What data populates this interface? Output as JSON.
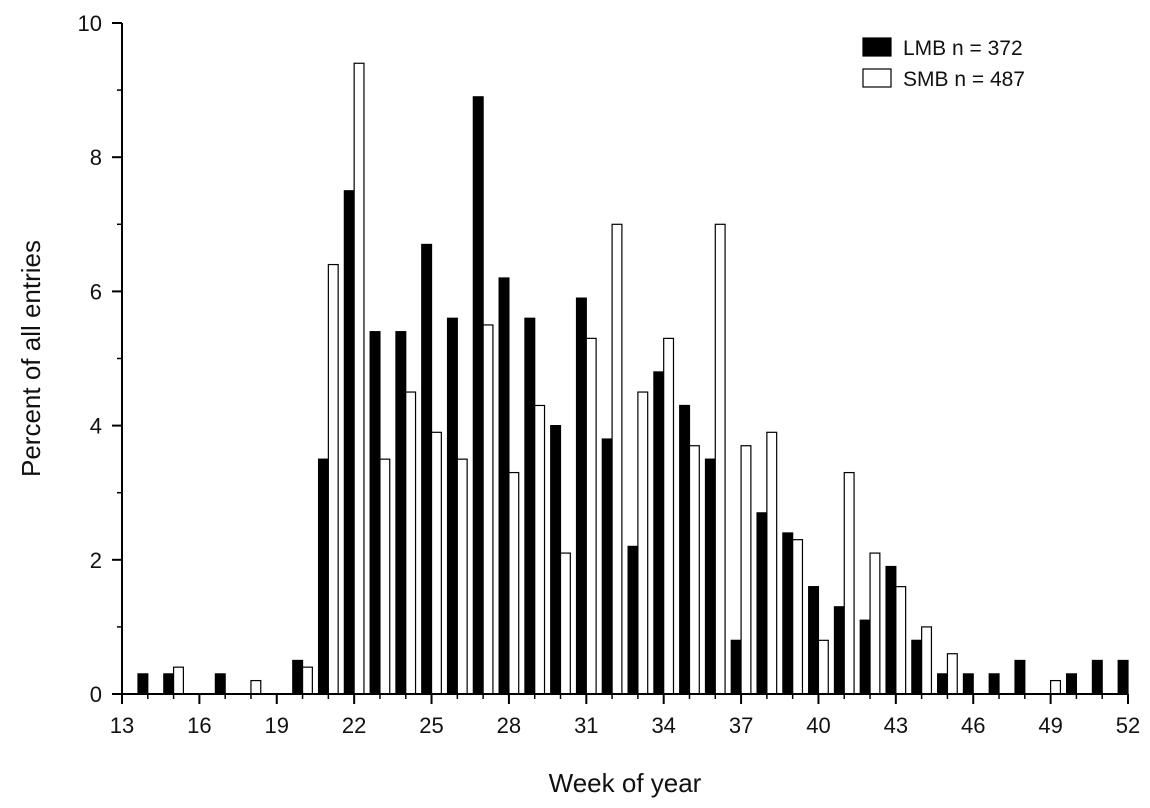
{
  "chart_data": {
    "type": "bar",
    "title": "",
    "xlabel": "Week of year",
    "ylabel": "Percent of all entries",
    "xlim": [
      13,
      52
    ],
    "ylim": [
      0,
      10
    ],
    "x_ticks": [
      "13",
      "16",
      "19",
      "22",
      "25",
      "28",
      "31",
      "34",
      "37",
      "40",
      "43",
      "46",
      "49",
      "52"
    ],
    "y_ticks": [
      "0",
      "2",
      "4",
      "6",
      "8",
      "10"
    ],
    "legend_position": "top-right",
    "grid": false,
    "x": [
      14,
      15,
      16,
      17,
      18,
      19,
      20,
      21,
      22,
      23,
      24,
      25,
      26,
      27,
      28,
      29,
      30,
      31,
      32,
      33,
      34,
      35,
      36,
      37,
      38,
      39,
      40,
      41,
      42,
      43,
      44,
      45,
      46,
      47,
      48,
      49,
      50,
      51,
      52
    ],
    "series": [
      {
        "name": "LMB",
        "legend_label": "LMB  n = 372",
        "fill": "#000000",
        "values": [
          0.3,
          0.3,
          0,
          0.3,
          0,
          0,
          0.5,
          3.5,
          7.5,
          5.4,
          5.4,
          6.7,
          5.6,
          8.9,
          6.2,
          5.6,
          4.0,
          5.9,
          3.8,
          2.2,
          4.8,
          4.3,
          3.5,
          0.8,
          2.7,
          2.4,
          1.6,
          1.3,
          1.1,
          1.9,
          0.8,
          0.3,
          0.3,
          0.3,
          0.5,
          0,
          0.3,
          0.5,
          0.5
        ]
      },
      {
        "name": "SMB",
        "legend_label": "SMB  n = 487",
        "fill": "#ffffff",
        "values": [
          0,
          0.4,
          0,
          0,
          0.2,
          0,
          0.4,
          6.4,
          9.4,
          3.5,
          4.5,
          3.9,
          3.5,
          5.5,
          3.3,
          4.3,
          2.1,
          5.3,
          7.0,
          4.5,
          5.3,
          3.7,
          7.0,
          3.7,
          3.9,
          2.3,
          0.8,
          3.3,
          2.1,
          1.6,
          1.0,
          0.6,
          0,
          0,
          0,
          0.2,
          0,
          0,
          0
        ]
      }
    ]
  }
}
